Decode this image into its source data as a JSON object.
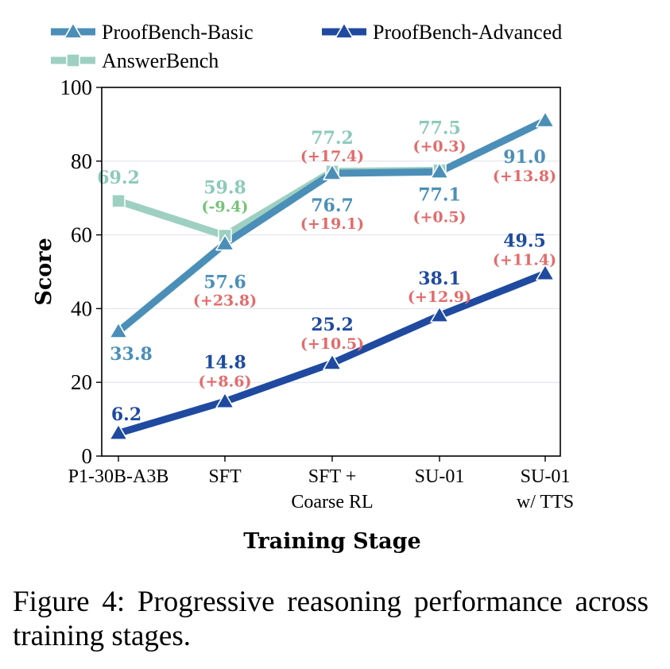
{
  "caption": "Figure 4: Progressive reasoning performance across training stages.",
  "chart_data": {
    "type": "line",
    "xlabel": "Training Stage",
    "ylabel": "Score",
    "ylim": [
      0,
      100
    ],
    "yticks": [
      0,
      20,
      40,
      60,
      80,
      100
    ],
    "grid": "horizontal",
    "legend_position": "top",
    "categories": [
      [
        "P1-30B-A3B"
      ],
      [
        "SFT"
      ],
      [
        "SFT +",
        "Coarse RL"
      ],
      [
        "SU-01"
      ],
      [
        "SU-01",
        "w/ TTS"
      ]
    ],
    "series": [
      {
        "name": "AnswerBench",
        "color": "#9ed0c2",
        "marker": "square",
        "values": [
          69.2,
          59.8,
          77.2,
          77.5,
          null
        ],
        "labels": [
          "69.2",
          "59.8",
          "77.2",
          "77.5",
          null
        ],
        "deltas": [
          null,
          "(-9.4)",
          "(+17.4)",
          "(+0.3)",
          null
        ],
        "delta_colors": [
          null,
          "#74c476",
          "#e36b6b",
          "#e36b6b",
          null
        ]
      },
      {
        "name": "ProofBench-Basic",
        "color": "#4b8fb8",
        "marker": "triangle",
        "values": [
          33.8,
          57.6,
          76.7,
          77.1,
          91.0
        ],
        "labels": [
          "33.8",
          "57.6",
          "76.7",
          "77.1",
          "91.0"
        ],
        "deltas": [
          null,
          "(+23.8)",
          "(+19.1)",
          "(+0.5)",
          "(+13.8)"
        ],
        "delta_colors": [
          null,
          "#e36b6b",
          "#e36b6b",
          "#e36b6b",
          "#e36b6b"
        ]
      },
      {
        "name": "ProofBench-Advanced",
        "color": "#1f4aa0",
        "marker": "triangle",
        "values": [
          6.2,
          14.8,
          25.2,
          38.1,
          49.5
        ],
        "labels": [
          "6.2",
          "14.8",
          "25.2",
          "38.1",
          "49.5"
        ],
        "deltas": [
          null,
          "(+8.6)",
          "(+10.5)",
          "(+12.9)",
          "(+11.4)"
        ],
        "delta_colors": [
          null,
          "#e36b6b",
          "#e36b6b",
          "#e36b6b",
          "#e36b6b"
        ]
      }
    ]
  }
}
